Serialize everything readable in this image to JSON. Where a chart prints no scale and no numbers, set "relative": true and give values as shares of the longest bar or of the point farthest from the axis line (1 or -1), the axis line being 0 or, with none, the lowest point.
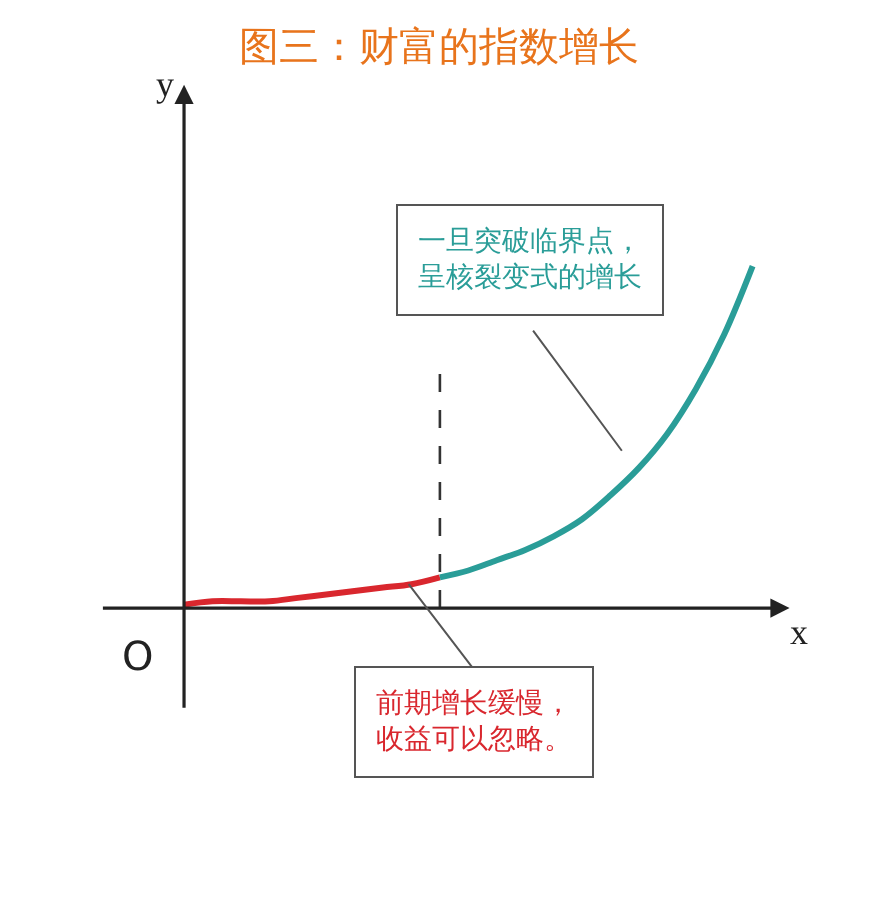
{
  "chart_data": {
    "type": "line",
    "title": "图三：财富的指数增长",
    "xlabel": "x",
    "ylabel": "y",
    "relative": true,
    "marker": "none",
    "line_style": "solid",
    "categories": [
      null,
      null,
      null,
      null,
      null,
      null,
      null,
      null,
      null,
      null,
      null,
      null,
      null,
      null,
      null,
      null,
      null,
      null,
      null,
      null,
      null
    ],
    "series": [
      {
        "color": "#d9272e",
        "values": [
          0.01,
          0.02,
          0.02,
          0.02,
          0.03,
          0.04,
          0.05,
          0.06,
          0.07,
          0.09,
          null,
          null,
          null,
          null,
          null,
          null,
          null,
          null,
          null,
          null,
          null
        ]
      },
      {
        "color": "#2a9d98",
        "values": [
          null,
          null,
          null,
          null,
          null,
          null,
          null,
          null,
          null,
          0.09,
          0.11,
          0.14,
          0.17,
          0.21,
          0.26,
          0.33,
          0.41,
          0.51,
          0.64,
          0.8,
          1
        ]
      }
    ],
    "annotations": [
      "O",
      "一旦突破临界点，呈核裂变式的增长",
      "前期增长缓慢，收益可以忽略。"
    ]
  }
}
